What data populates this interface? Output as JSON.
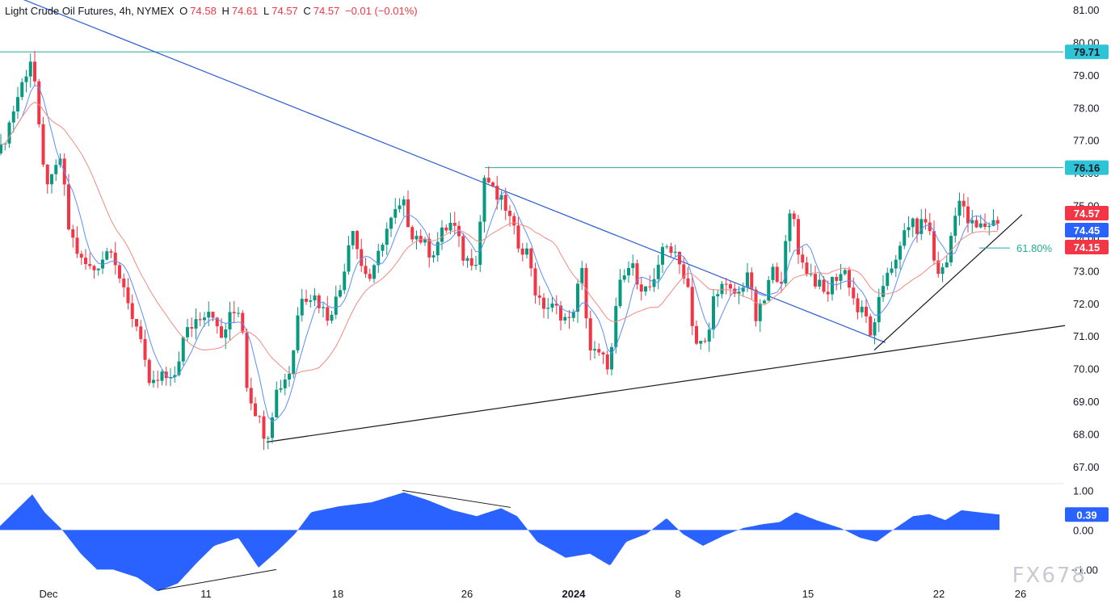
{
  "header": {
    "symbol": "Light Crude Oil Futures, 4h, NYMEX",
    "open_label": "O",
    "open": "74.58",
    "high_label": "H",
    "high": "74.61",
    "low_label": "L",
    "low": "74.57",
    "close_label": "C",
    "close": "74.57",
    "change": "−0.01 (−0.01%)"
  },
  "watermark": "FX678",
  "chart_data": {
    "type": "candlestick",
    "price_axis": {
      "ticks": [
        "81.00",
        "80.00",
        "79.00",
        "78.00",
        "77.00",
        "76.00",
        "75.00",
        "74.00",
        "73.00",
        "72.00",
        "71.00",
        "70.00",
        "69.00",
        "68.00",
        "67.00"
      ],
      "range": [
        66.5,
        81.3
      ]
    },
    "oscillator_axis": {
      "ticks": [
        "1.00",
        "0.00",
        "−1.00"
      ],
      "range": [
        -1.4,
        1.15
      ]
    },
    "time_axis": {
      "labels": [
        "Dec",
        "11",
        "18",
        "26",
        "2024",
        "8",
        "15",
        "22",
        "26"
      ],
      "bold": [
        "2024"
      ]
    },
    "horizontal_levels": [
      {
        "value": 79.71,
        "label": "79.71",
        "color": "#22ab94",
        "from_date": "start"
      },
      {
        "value": 76.16,
        "label": "76.16",
        "color": "#22ab94",
        "from_date": "Dec 27"
      }
    ],
    "price_badges": [
      {
        "value": 74.57,
        "label": "74.57",
        "color": "#f23645"
      },
      {
        "value": 74.45,
        "label": "74.45",
        "color": "#2962ff"
      },
      {
        "value": 74.15,
        "label": "74.15",
        "color": "#f23645"
      },
      {
        "value": 0.39,
        "label": "0.39",
        "color": "#2962ff",
        "pane": "oscillator"
      }
    ],
    "fib_level": {
      "label": "61.80%",
      "value": 73.7,
      "color": "#22ab94"
    },
    "trendlines": [
      {
        "name": "descending",
        "color": "#2a5ad3",
        "points": [
          [
            0,
            81.6
          ],
          [
            1096,
            70.8
          ]
        ]
      },
      {
        "name": "ascending-support",
        "color": "#131722",
        "points": [
          [
            330,
            67.75
          ],
          [
            1318,
            71.32
          ]
        ]
      },
      {
        "name": "rising-support",
        "color": "#131722",
        "points": [
          [
            1082,
            70.57
          ],
          [
            1265,
            74.72
          ]
        ]
      }
    ],
    "oscillator_lines": [
      {
        "color": "#131722",
        "points": [
          [
            196,
            -1.52
          ],
          [
            342,
            -1.0
          ]
        ]
      },
      {
        "color": "#131722",
        "points": [
          [
            498,
            1.0
          ],
          [
            632,
            0.57
          ]
        ]
      }
    ],
    "candle_anchors": [
      [
        0,
        76.6
      ],
      [
        20,
        78.2
      ],
      [
        40,
        79.65
      ],
      [
        52,
        76.2
      ],
      [
        62,
        75.6
      ],
      [
        75,
        76.5
      ],
      [
        85,
        74.3
      ],
      [
        100,
        73.3
      ],
      [
        115,
        73.0
      ],
      [
        138,
        73.8
      ],
      [
        155,
        72.1
      ],
      [
        175,
        71.0
      ],
      [
        185,
        69.3
      ],
      [
        200,
        69.8
      ],
      [
        213,
        69.5
      ],
      [
        228,
        71.0
      ],
      [
        245,
        71.6
      ],
      [
        262,
        71.9
      ],
      [
        272,
        70.8
      ],
      [
        285,
        71.6
      ],
      [
        298,
        71.9
      ],
      [
        306,
        69.4
      ],
      [
        318,
        68.6
      ],
      [
        330,
        67.85
      ],
      [
        342,
        69.3
      ],
      [
        360,
        70.0
      ],
      [
        372,
        72.3
      ],
      [
        390,
        72.2
      ],
      [
        405,
        71.6
      ],
      [
        420,
        72.3
      ],
      [
        436,
        74.5
      ],
      [
        446,
        73.2
      ],
      [
        460,
        72.7
      ],
      [
        475,
        74.1
      ],
      [
        490,
        74.8
      ],
      [
        500,
        75.0
      ],
      [
        508,
        74.2
      ],
      [
        520,
        74.0
      ],
      [
        534,
        73.5
      ],
      [
        548,
        74.2
      ],
      [
        560,
        74.5
      ],
      [
        575,
        73.3
      ],
      [
        590,
        73.4
      ],
      [
        600,
        76.0
      ],
      [
        612,
        75.3
      ],
      [
        625,
        75.0
      ],
      [
        640,
        73.9
      ],
      [
        655,
        73.5
      ],
      [
        665,
        72.0
      ],
      [
        678,
        71.9
      ],
      [
        690,
        71.8
      ],
      [
        705,
        71.4
      ],
      [
        720,
        73.0
      ],
      [
        730,
        70.6
      ],
      [
        745,
        70.3
      ],
      [
        755,
        70.1
      ],
      [
        765,
        72.4
      ],
      [
        780,
        73.2
      ],
      [
        797,
        72.4
      ],
      [
        812,
        72.6
      ],
      [
        822,
        74.0
      ],
      [
        838,
        73.3
      ],
      [
        850,
        72.8
      ],
      [
        860,
        70.8
      ],
      [
        875,
        70.7
      ],
      [
        885,
        72.5
      ],
      [
        895,
        72.5
      ],
      [
        905,
        72.3
      ],
      [
        915,
        72.3
      ],
      [
        925,
        73.0
      ],
      [
        935,
        71.5
      ],
      [
        945,
        72.0
      ],
      [
        955,
        73.0
      ],
      [
        967,
        72.8
      ],
      [
        980,
        75.1
      ],
      [
        990,
        73.3
      ],
      [
        1000,
        73.0
      ],
      [
        1012,
        72.6
      ],
      [
        1022,
        72.2
      ],
      [
        1032,
        72.8
      ],
      [
        1047,
        73.0
      ],
      [
        1060,
        71.8
      ],
      [
        1070,
        71.7
      ],
      [
        1080,
        70.9
      ],
      [
        1090,
        72.3
      ],
      [
        1100,
        73.2
      ],
      [
        1110,
        73.2
      ],
      [
        1122,
        74.5
      ],
      [
        1135,
        74.3
      ],
      [
        1148,
        74.6
      ],
      [
        1158,
        73.0
      ],
      [
        1170,
        73.0
      ],
      [
        1185,
        75.3
      ],
      [
        1198,
        74.5
      ],
      [
        1208,
        74.3
      ],
      [
        1220,
        74.4
      ],
      [
        1235,
        74.57
      ]
    ],
    "oscillator_anchors": [
      [
        0,
        0.1
      ],
      [
        20,
        0.5
      ],
      [
        40,
        0.9
      ],
      [
        55,
        0.45
      ],
      [
        75,
        0.05
      ],
      [
        100,
        -0.6
      ],
      [
        120,
        -1.0
      ],
      [
        140,
        -1.0
      ],
      [
        170,
        -1.2
      ],
      [
        195,
        -1.55
      ],
      [
        220,
        -1.35
      ],
      [
        245,
        -0.8
      ],
      [
        265,
        -0.4
      ],
      [
        295,
        -0.2
      ],
      [
        320,
        -0.95
      ],
      [
        345,
        -0.5
      ],
      [
        365,
        -0.1
      ],
      [
        385,
        0.45
      ],
      [
        420,
        0.6
      ],
      [
        460,
        0.7
      ],
      [
        500,
        0.95
      ],
      [
        530,
        0.75
      ],
      [
        560,
        0.5
      ],
      [
        590,
        0.35
      ],
      [
        620,
        0.55
      ],
      [
        640,
        0.35
      ],
      [
        665,
        -0.3
      ],
      [
        700,
        -0.7
      ],
      [
        730,
        -0.6
      ],
      [
        755,
        -0.9
      ],
      [
        775,
        -0.3
      ],
      [
        800,
        -0.1
      ],
      [
        825,
        0.3
      ],
      [
        845,
        -0.1
      ],
      [
        870,
        -0.4
      ],
      [
        895,
        -0.15
      ],
      [
        920,
        0.05
      ],
      [
        945,
        0.15
      ],
      [
        965,
        0.2
      ],
      [
        985,
        0.45
      ],
      [
        1010,
        0.25
      ],
      [
        1040,
        0.05
      ],
      [
        1065,
        -0.2
      ],
      [
        1085,
        -0.3
      ],
      [
        1105,
        0.0
      ],
      [
        1130,
        0.35
      ],
      [
        1150,
        0.4
      ],
      [
        1170,
        0.25
      ],
      [
        1190,
        0.5
      ],
      [
        1210,
        0.45
      ],
      [
        1237,
        0.39
      ]
    ]
  }
}
